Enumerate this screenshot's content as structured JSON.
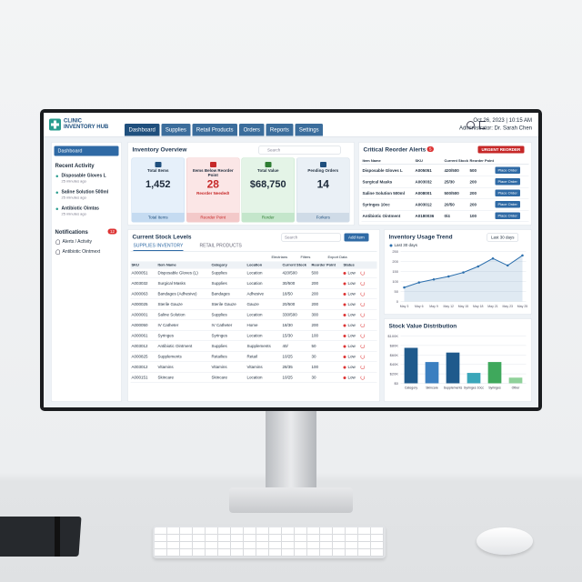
{
  "header": {
    "logo_line1": "CLINIC",
    "logo_line2": "INVENTORY HUB",
    "tabs": [
      "Dashboard",
      "Supplies",
      "Retail Products",
      "Orders",
      "Reports",
      "Settings"
    ],
    "datetime": "Oct 26, 2023 | 10:15 AM",
    "user": "Administrator: Dr. Sarah Chen"
  },
  "sidebar": {
    "nav": "Dashboard",
    "recent_title": "Recent Activity",
    "recent": [
      {
        "item": "Disposable Gloves L",
        "time": "25 minutes ago"
      },
      {
        "item": "Saline Solution 500ml",
        "time": "25 minutes ago"
      },
      {
        "item": "Antibiotic Oimtas",
        "time": "25 minutes ago"
      }
    ],
    "notifications_title": "Notifications",
    "notifications_count": "12",
    "notifications": [
      "Alerts / Activity",
      "Antibiotic Ointmext"
    ]
  },
  "overview": {
    "title": "Inventory Overview",
    "search": "Search",
    "cards": [
      {
        "label": "Total Items",
        "value": "1,452",
        "footer": "Total Items"
      },
      {
        "label": "Items Below Reorder Point",
        "value": "28",
        "note": "Reorder Needed!",
        "footer": "Reorder Point"
      },
      {
        "label": "Total Value",
        "value": "$68,750",
        "footer": "Rorder"
      },
      {
        "label": "Pending Orders",
        "value": "14",
        "footer": "Forkers"
      }
    ]
  },
  "alerts": {
    "title": "Critical Reorder Alerts",
    "count": "5",
    "button": "URGENT REORDER",
    "columns": [
      "Item Name",
      "SKU",
      "Current Stock",
      "Reorder Point"
    ],
    "rows": [
      [
        "Disposable Gloves L",
        "A005051",
        "420/500",
        "500",
        "Place Order"
      ],
      [
        "Surgical Masks",
        "A003032",
        "25/30",
        "200",
        "Place Order"
      ],
      [
        "Saline Solution 500ml",
        "A008001",
        "500/500",
        "200",
        "Place Order"
      ],
      [
        "Syringes 10cc",
        "A003012",
        "20/50",
        "200",
        "Place Order"
      ],
      [
        "Antibiotic Ointment",
        "A0180036",
        "0/4",
        "100",
        "Place Order"
      ]
    ]
  },
  "stock": {
    "title": "Current Stock Levels",
    "search": "Search",
    "add": "Add item",
    "tabs": [
      "SUPPLIES INVENTORY",
      "RETAIL PRODUCTS"
    ],
    "toolbar": [
      "Electrians",
      "Filters",
      "Export Data"
    ],
    "columns": [
      "SKU",
      "Item Name",
      "Category",
      "Location",
      "Current Stock",
      "Reorder Point",
      "Status"
    ],
    "rows": [
      [
        "A000051",
        "Disposable Gloves (L)",
        "Supplies",
        "Location",
        "420/500",
        "500",
        "Low"
      ],
      [
        "A003032",
        "Surgical Masks",
        "Supplies",
        "Location",
        "30/500",
        "200",
        "Low"
      ],
      [
        "A000063",
        "Bandages (Adhesive)",
        "Bandages",
        "Adhesive",
        "18/50",
        "200",
        "Low"
      ],
      [
        "A000025",
        "Sterile Gauze",
        "Sterile Gauze",
        "Gauze",
        "20/500",
        "200",
        "Low"
      ],
      [
        "A000001",
        "Saline Solution",
        "Supplies",
        "Location",
        "330/500",
        "300",
        "Low"
      ],
      [
        "A000050",
        "IV Catheter",
        "IV Catheter",
        "Home",
        "18/30",
        "200",
        "Low"
      ],
      [
        "A000061",
        "Syringes",
        "Syringes",
        "Location",
        "15/30",
        "100",
        "Low"
      ],
      [
        "A003012",
        "Antibiotic Ointment",
        "Supplies",
        "Supplements",
        "40/",
        "50",
        "Low"
      ],
      [
        "A000825",
        "Supplements",
        "Retailies",
        "Retail",
        "10/25",
        "30",
        "Low"
      ],
      [
        "A003012",
        "Vitamins",
        "Vitamins",
        "Vitamins",
        "28/35",
        "100",
        "Low"
      ],
      [
        "A000151",
        "Skincare",
        "Skincare",
        "Location",
        "10/25",
        "30",
        "Low"
      ]
    ]
  },
  "chart_data": [
    {
      "type": "line",
      "title": "Inventory Usage Trend",
      "dropdown": "Last 30 days",
      "x": [
        "May 3",
        "May 6",
        "May 9",
        "May 12",
        "May 15",
        "May 18",
        "May 21",
        "May 23",
        "May 25"
      ],
      "series": [
        {
          "name": "Last 30 days",
          "color": "#2c6fad",
          "values": [
            70,
            95,
            110,
            125,
            145,
            175,
            215,
            180,
            230
          ]
        }
      ],
      "ylim": [
        0,
        250
      ],
      "yticks": [
        0,
        50,
        100,
        150,
        200,
        250
      ],
      "grid": true
    },
    {
      "type": "bar",
      "title": "Stock Value Distribution",
      "categories": [
        "Category",
        "Skincare",
        "Supplements",
        "Syringes 10cc",
        "Syringes",
        "Other"
      ],
      "values": [
        75000,
        45000,
        65000,
        22000,
        45000,
        12000
      ],
      "colors": [
        "#1f5a8c",
        "#3b7fc0",
        "#1f5a8c",
        "#3aa6b9",
        "#3fa85c",
        "#8fd19a"
      ],
      "ylim": [
        0,
        100000
      ],
      "yticks": [
        {
          "value": 0,
          "label": "$0"
        },
        {
          "value": 20000,
          "label": "$20K"
        },
        {
          "value": 40000,
          "label": "$40K"
        },
        {
          "value": 60000,
          "label": "$60K"
        },
        {
          "value": 80000,
          "label": "$80K"
        },
        {
          "value": 100000,
          "label": "$100K"
        }
      ],
      "grid": true
    }
  ]
}
